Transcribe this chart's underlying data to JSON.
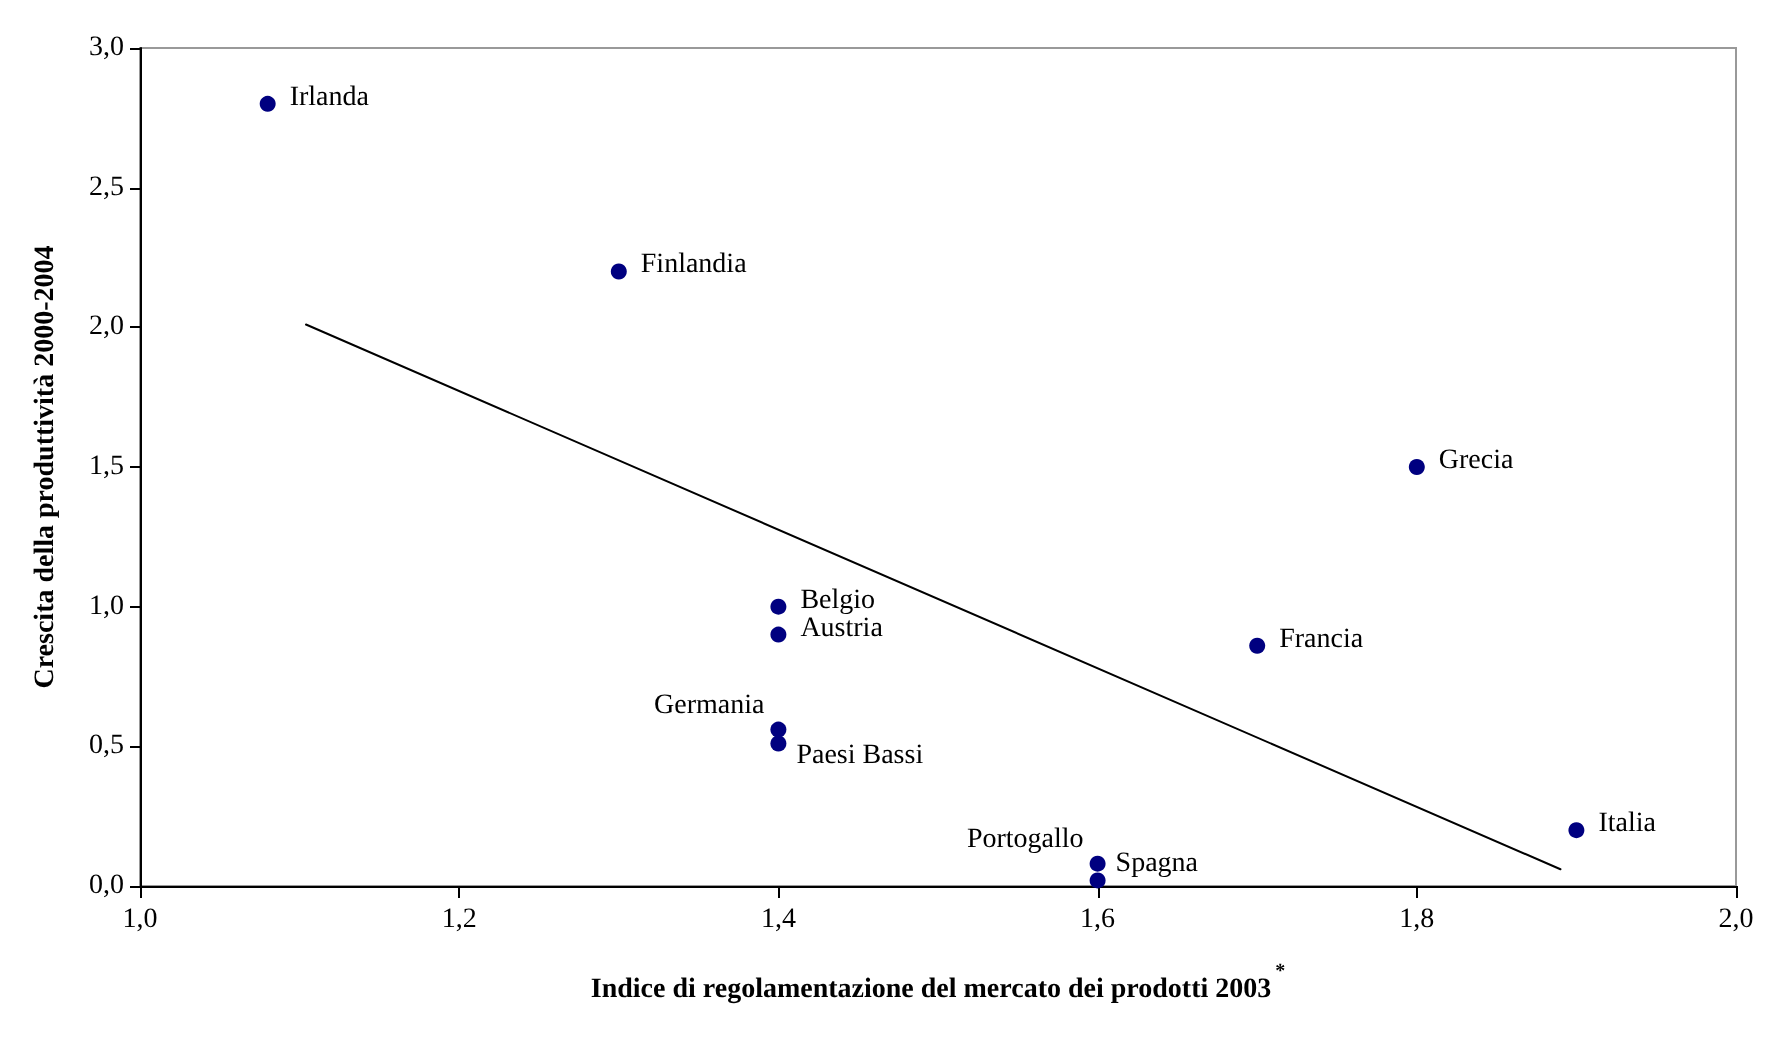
{
  "chart_data": {
    "type": "scatter",
    "xlabel": "Indice di regolamentazione del mercato dei prodotti 2003$^{*}$",
    "ylabel": "Crescita della produttività 2000-2004",
    "series": [
      {
        "color": "#000080",
        "marker": "circle",
        "x": [
          1.08,
          1.3,
          1.4,
          1.4,
          1.4,
          1.4,
          1.6,
          1.6,
          1.7,
          1.8,
          1.9
        ],
        "values": [
          2.8,
          2.2,
          1.0,
          0.9,
          0.56,
          0.51,
          0.08,
          0.02,
          0.86,
          1.5,
          0.2
        ]
      },
      {
        "type": "line",
        "color": "#000000",
        "x": [
          1.104,
          1.89
        ],
        "values": [
          2.01,
          0.06
        ]
      }
    ],
    "annotations": [
      {
        "text": "Irlanda",
        "x": 1.08,
        "y": 2.8
      },
      {
        "text": "Finlandia",
        "x": 1.3,
        "y": 2.2
      },
      {
        "text": "Belgio",
        "x": 1.4,
        "y": 1.0
      },
      {
        "text": "Austria",
        "x": 1.4,
        "y": 0.9
      },
      {
        "text": "Germania",
        "x": 1.4,
        "y": 0.56
      },
      {
        "text": "Paesi Bassi",
        "x": 1.4,
        "y": 0.51
      },
      {
        "text": "Portogallo",
        "x": 1.6,
        "y": 0.08
      },
      {
        "text": "Spagna",
        "x": 1.6,
        "y": 0.02
      },
      {
        "text": "Francia",
        "x": 1.7,
        "y": 0.86
      },
      {
        "text": "Grecia",
        "x": 1.8,
        "y": 1.5
      },
      {
        "text": "Italia",
        "x": 1.9,
        "y": 0.2
      }
    ],
    "xlim": [
      1.0,
      2.0
    ],
    "xticks": [
      {
        "value": 1.0,
        "label": "1,0"
      },
      {
        "value": 1.2,
        "label": "1,2"
      },
      {
        "value": 1.4,
        "label": "1,4"
      },
      {
        "value": 1.6,
        "label": "1,6"
      },
      {
        "value": 1.8,
        "label": "1,8"
      },
      {
        "value": 2.0,
        "label": "2,0"
      }
    ],
    "ylim": [
      0,
      3.0
    ],
    "yticks": [
      {
        "value": 0,
        "label": "0,0"
      },
      {
        "value": 0.5,
        "label": "0,5"
      },
      {
        "value": 1.0,
        "label": "1,0"
      },
      {
        "value": 1.5,
        "label": "1,5"
      },
      {
        "value": 2.0,
        "label": "2,0"
      },
      {
        "value": 2.5,
        "label": "2,5"
      },
      {
        "value": 3.0,
        "label": "3,0"
      }
    ],
    "grid": false,
    "line_style": "solid"
  }
}
